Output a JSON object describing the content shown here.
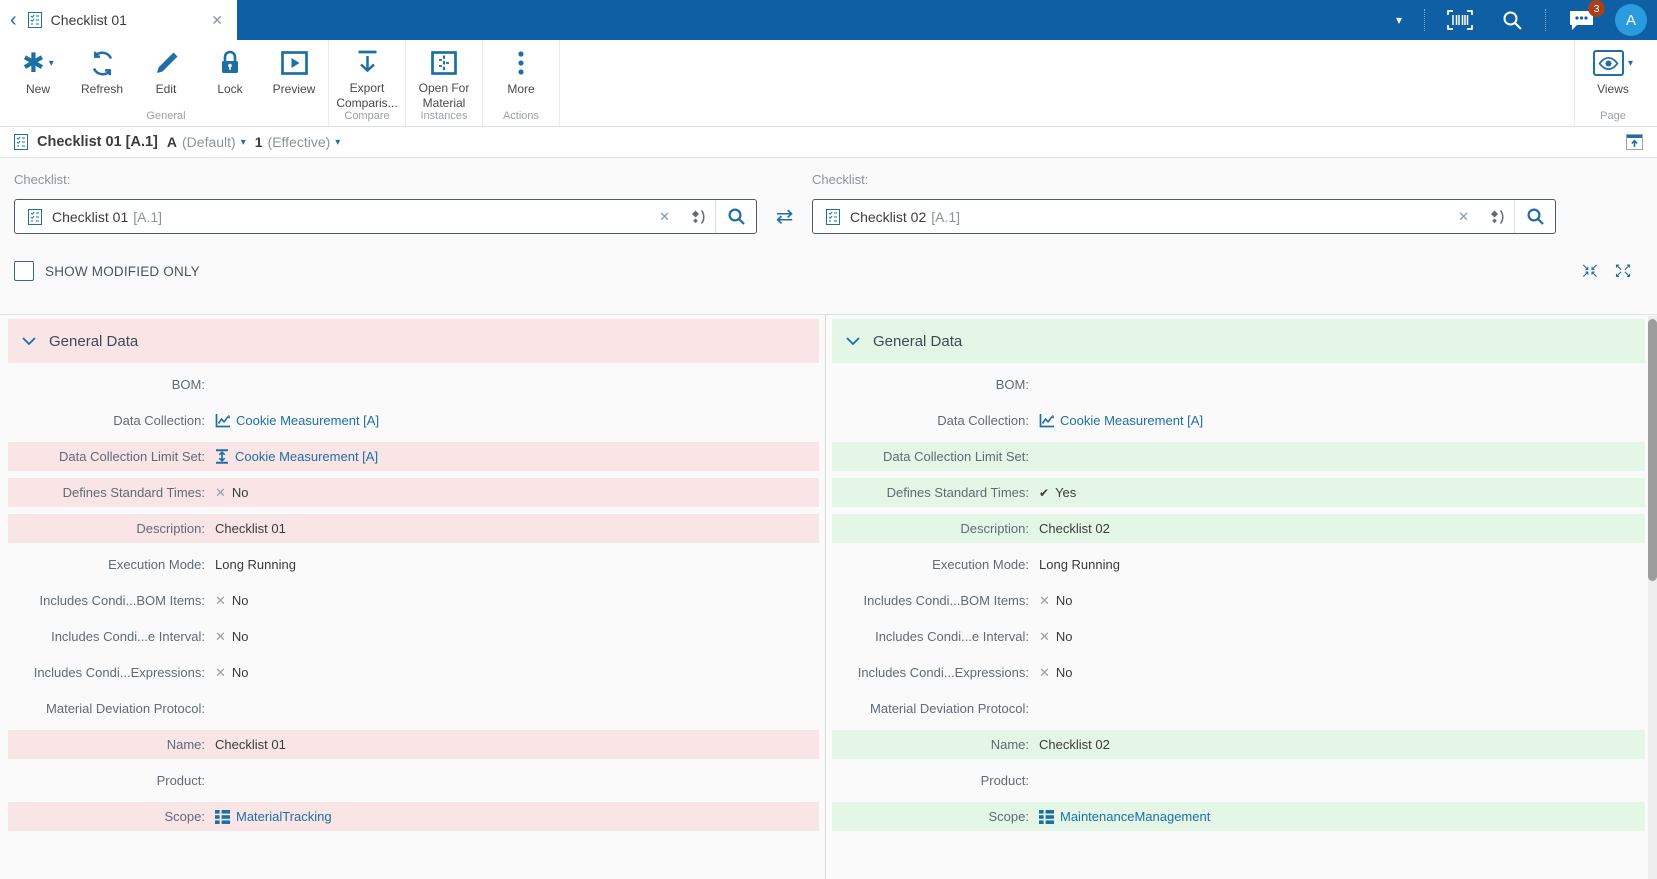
{
  "topbar": {
    "tab_title": "Checklist 01",
    "chat_badge": "3",
    "avatar_initial": "A"
  },
  "ribbon": {
    "new": "New",
    "refresh": "Refresh",
    "edit": "Edit",
    "lock": "Lock",
    "preview": "Preview",
    "export_comparison": "Export Comparis...",
    "open_for_material": "Open For Material",
    "more": "More",
    "views": "Views",
    "group_general": "General",
    "group_compare": "Compare",
    "group_instances": "Instances",
    "group_actions": "Actions",
    "group_page": "Page"
  },
  "breadcrumb": {
    "title": "Checklist 01 [A.1]",
    "revision": "A",
    "revision_state": "(Default)",
    "version": "1",
    "version_state": "(Effective)"
  },
  "filters": {
    "left_label": "Checklist:",
    "right_label": "Checklist:",
    "left_value": "Checklist 01",
    "left_version": "[A.1]",
    "right_value": "Checklist 02",
    "right_version": "[A.1]",
    "show_modified_label": "SHOW MODIFIED ONLY",
    "show_modified_checked": false
  },
  "colors": {
    "topbar_blue": "#0e5fa4",
    "accent_blue": "#1d6fa5",
    "diff_removed_pink": "#f9e5e5",
    "diff_added_green": "#e4f6e5",
    "badge_red": "#a8401c"
  },
  "compare": {
    "left_section_title": "General Data",
    "right_section_title": "General Data",
    "rows": [
      {
        "label": "BOM:",
        "left": {
          "type": "empty",
          "highlight": false
        },
        "right": {
          "type": "empty",
          "highlight": false
        }
      },
      {
        "label": "Data Collection:",
        "left": {
          "type": "link",
          "icon": "chart-icon",
          "text": "Cookie Measurement [A]",
          "highlight": false
        },
        "right": {
          "type": "link",
          "icon": "chart-icon",
          "text": "Cookie Measurement [A]",
          "highlight": false
        }
      },
      {
        "label": "Data Collection Limit Set:",
        "left": {
          "type": "link",
          "icon": "limits-icon",
          "text": "Cookie Measurement [A]",
          "highlight": true
        },
        "right": {
          "type": "empty",
          "highlight": true
        }
      },
      {
        "label": "Defines Standard Times:",
        "left": {
          "type": "bool",
          "value": "No",
          "highlight": true
        },
        "right": {
          "type": "bool",
          "value": "Yes",
          "highlight": true
        }
      },
      {
        "label": "Description:",
        "left": {
          "type": "text",
          "text": "Checklist 01",
          "highlight": true
        },
        "right": {
          "type": "text",
          "text": "Checklist 02",
          "highlight": true
        }
      },
      {
        "label": "Execution Mode:",
        "left": {
          "type": "text",
          "text": "Long Running",
          "highlight": false
        },
        "right": {
          "type": "text",
          "text": "Long Running",
          "highlight": false
        }
      },
      {
        "label": "Includes Condi...BOM Items:",
        "left": {
          "type": "bool",
          "value": "No",
          "highlight": false
        },
        "right": {
          "type": "bool",
          "value": "No",
          "highlight": false
        }
      },
      {
        "label": "Includes Condi...e Interval:",
        "left": {
          "type": "bool",
          "value": "No",
          "highlight": false
        },
        "right": {
          "type": "bool",
          "value": "No",
          "highlight": false
        }
      },
      {
        "label": "Includes Condi...Expressions:",
        "left": {
          "type": "bool",
          "value": "No",
          "highlight": false
        },
        "right": {
          "type": "bool",
          "value": "No",
          "highlight": false
        }
      },
      {
        "label": "Material Deviation Protocol:",
        "left": {
          "type": "empty",
          "highlight": false
        },
        "right": {
          "type": "empty",
          "highlight": false
        }
      },
      {
        "label": "Name:",
        "left": {
          "type": "text",
          "text": "Checklist 01",
          "highlight": true
        },
        "right": {
          "type": "text",
          "text": "Checklist 02",
          "highlight": true
        }
      },
      {
        "label": "Product:",
        "left": {
          "type": "empty",
          "highlight": false
        },
        "right": {
          "type": "empty",
          "highlight": false
        }
      },
      {
        "label": "Scope:",
        "left": {
          "type": "link",
          "icon": "scope-icon",
          "text": "MaterialTracking",
          "highlight": true
        },
        "right": {
          "type": "link",
          "icon": "scope-icon",
          "text": "MaintenanceManagement",
          "highlight": true
        }
      }
    ]
  }
}
